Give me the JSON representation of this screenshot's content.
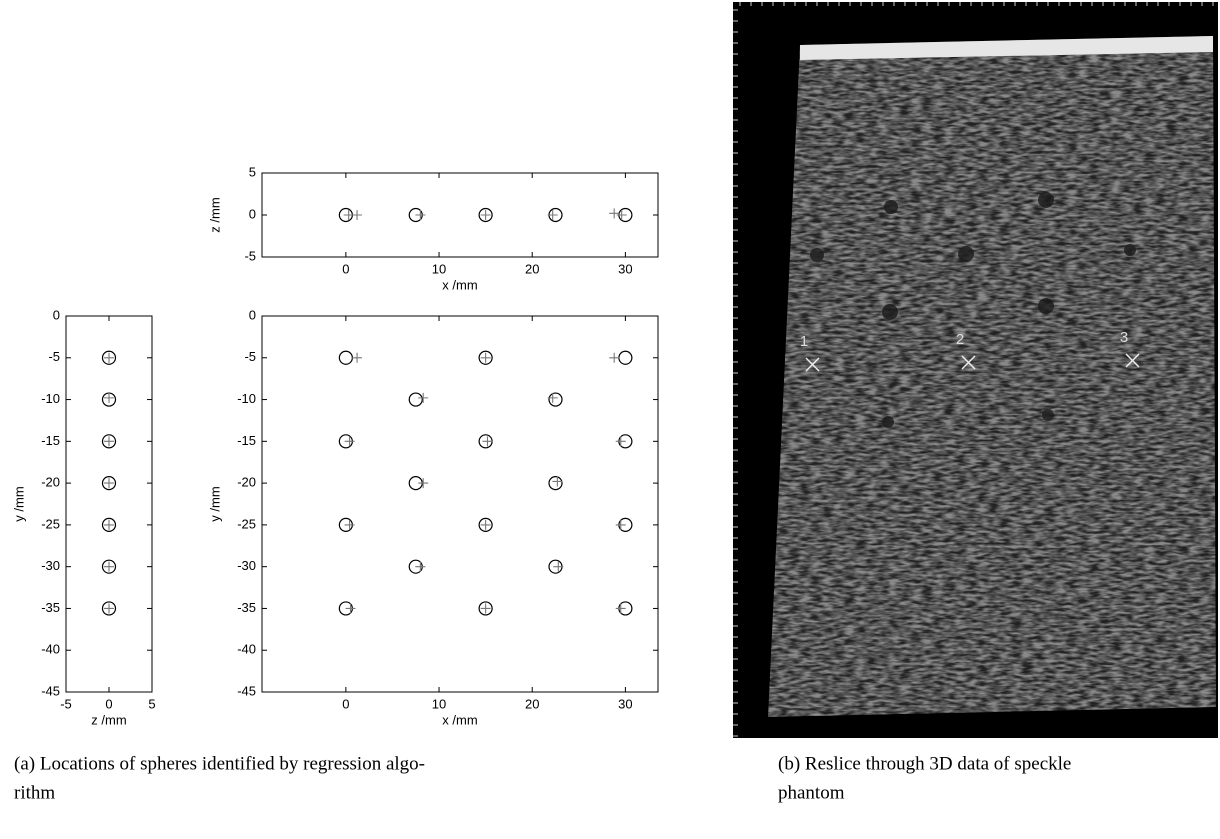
{
  "chart_data": [
    {
      "type": "scatter",
      "xlabel": "x /mm",
      "ylabel": "z /mm",
      "xlim": [
        -9,
        33.5
      ],
      "ylim": [
        -5,
        5
      ],
      "xticks": [
        0,
        10,
        20,
        30
      ],
      "yticks": [
        -5,
        0,
        5
      ],
      "series": [
        {
          "marker": "circle",
          "color": "#000000",
          "x": [
            0,
            7.5,
            15,
            22.5,
            30
          ],
          "values": [
            0,
            0,
            0,
            0,
            0
          ]
        },
        {
          "marker": "plus",
          "color": "#777777",
          "x": [
            0.3,
            1.2,
            8,
            15,
            22.2,
            28.8,
            29.6
          ],
          "values": [
            0,
            0,
            0,
            0,
            0,
            0.2,
            0
          ]
        }
      ]
    },
    {
      "type": "scatter",
      "xlabel": "z /mm",
      "ylabel": "y /mm",
      "xlim": [
        -5,
        5
      ],
      "ylim": [
        -45,
        0
      ],
      "xticks": [
        -5,
        0,
        5
      ],
      "yticks": [
        -45,
        -40,
        -35,
        -30,
        -25,
        -20,
        -15,
        -10,
        -5,
        0
      ],
      "series": [
        {
          "marker": "circle",
          "color": "#000000",
          "x": [
            0,
            0,
            0,
            0,
            0,
            0,
            0
          ],
          "values": [
            -5,
            -10,
            -15,
            -20,
            -25,
            -30,
            -35
          ]
        },
        {
          "marker": "plus",
          "color": "#777777",
          "x": [
            0,
            0,
            0,
            0,
            0,
            0,
            0
          ],
          "values": [
            -5,
            -9.8,
            -15,
            -20,
            -25,
            -30,
            -35
          ]
        }
      ]
    },
    {
      "type": "scatter",
      "xlabel": "x /mm",
      "ylabel": "y /mm",
      "xlim": [
        -9,
        33.5
      ],
      "ylim": [
        -45,
        0
      ],
      "xticks": [
        0,
        10,
        20,
        30
      ],
      "yticks": [
        -45,
        -40,
        -35,
        -30,
        -25,
        -20,
        -15,
        -10,
        -5,
        0
      ],
      "series": [
        {
          "marker": "circle",
          "color": "#000000",
          "x": [
            0,
            15,
            30,
            7.5,
            22.5,
            0,
            15,
            30,
            7.5,
            22.5,
            0,
            15,
            30,
            7.5,
            22.5,
            0,
            15,
            30
          ],
          "values": [
            -5,
            -5,
            -5,
            -10,
            -10,
            -15,
            -15,
            -15,
            -20,
            -20,
            -25,
            -25,
            -25,
            -30,
            -30,
            -35,
            -35,
            -35
          ]
        },
        {
          "marker": "plus",
          "color": "#777777",
          "x": [
            1.2,
            15,
            28.8,
            8.3,
            22.2,
            0.4,
            15.2,
            29.5,
            8.3,
            22.7,
            0.4,
            15,
            29.5,
            8,
            22.8,
            0.5,
            15,
            29.5
          ],
          "values": [
            -5,
            -5,
            -5,
            -9.8,
            -9.8,
            -15,
            -15,
            -15,
            -20,
            -19.8,
            -25,
            -25,
            -25,
            -30,
            -30,
            -35,
            -35,
            -35
          ]
        }
      ]
    }
  ],
  "image_labels": [
    "1",
    "2",
    "3"
  ],
  "captions": [
    [
      "(a) Locations of spheres identified by regression algo-",
      "rithm"
    ],
    [
      "(b) Reslice through 3D data of speckle",
      "phantom"
    ]
  ]
}
